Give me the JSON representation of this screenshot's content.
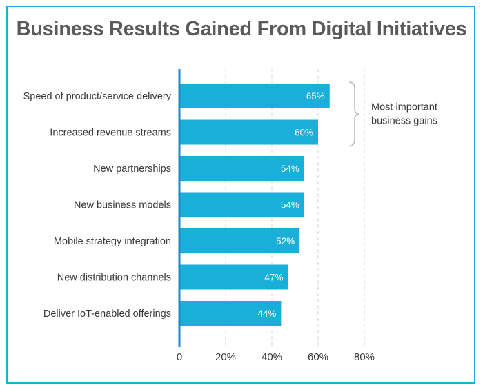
{
  "chart_data": {
    "type": "bar",
    "orientation": "horizontal",
    "title": "Business Results Gained From Digital Initiatives",
    "categories": [
      "Speed of product/service delivery",
      "Increased revenue streams",
      "New partnerships",
      "New business models",
      "Mobile strategy integration",
      "New distribution channels",
      "Deliver IoT-enabled offerings"
    ],
    "values": [
      65,
      60,
      54,
      54,
      52,
      47,
      44
    ],
    "value_labels": [
      "65%",
      "60%",
      "54%",
      "54%",
      "52%",
      "47%",
      "44%"
    ],
    "xlim": [
      0,
      80
    ],
    "x_ticks": [
      0,
      20,
      40,
      60,
      80
    ],
    "x_tick_labels": [
      "0",
      "20%",
      "40%",
      "60%",
      "80%"
    ],
    "grid": "vertical dashed",
    "annotation": {
      "text_lines": [
        "Most important",
        "business gains"
      ],
      "applies_to": [
        0,
        1
      ]
    },
    "colors": {
      "bar": "#1aafd8",
      "axis": "#1e88c7",
      "frame": "#1aafd8",
      "title": "#5a5a5a",
      "text": "#3a3a3a",
      "grid": "#d6d6d6",
      "bar_label": "#ffffff"
    }
  }
}
